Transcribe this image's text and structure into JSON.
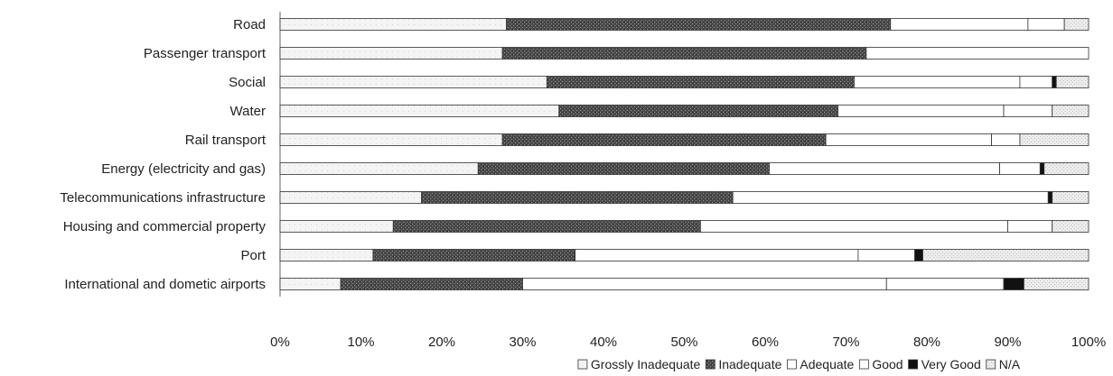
{
  "chart_data": {
    "type": "bar",
    "orientation": "horizontal",
    "stacked": true,
    "categories": [
      "Road",
      "Passenger transport",
      "Social",
      "Water",
      "Rail transport",
      "Energy (electricity and gas)",
      "Telecommunications infrastructure",
      "Housing and commercial property",
      "Port",
      "International and dometic airports"
    ],
    "series": [
      {
        "name": "Grossly Inadequate",
        "values": [
          28,
          27.5,
          33,
          34.5,
          27.5,
          24.5,
          17.5,
          14,
          11.5,
          7.5
        ]
      },
      {
        "name": "Inadequate",
        "values": [
          47.5,
          45,
          38,
          34.5,
          40,
          36,
          38.5,
          38,
          25,
          22.5
        ]
      },
      {
        "name": "Adequate",
        "values": [
          17,
          27.5,
          20.5,
          20.5,
          20.5,
          28.5,
          39,
          38,
          35,
          45
        ]
      },
      {
        "name": "Good",
        "values": [
          4.5,
          0,
          4,
          6,
          3.5,
          5,
          0,
          5.5,
          7,
          14.5
        ]
      },
      {
        "name": "Very Good",
        "values": [
          0,
          0,
          0.5,
          0,
          0,
          0.5,
          0.5,
          0,
          1,
          2.5
        ]
      },
      {
        "name": "N/A",
        "values": [
          3,
          0,
          4,
          4.5,
          8.5,
          5.5,
          4.5,
          4.5,
          20.5,
          8
        ]
      }
    ],
    "xlim": [
      0,
      100
    ],
    "x_ticks": [
      "0%",
      "10%",
      "20%",
      "30%",
      "40%",
      "50%",
      "60%",
      "70%",
      "80%",
      "90%",
      "100%"
    ],
    "legend_position": "bottom",
    "grid": false,
    "colors": {
      "Grossly Inadequate": "#ececec",
      "Inadequate": "#555555",
      "Adequate": "#ffffff",
      "Good": "#ffffff",
      "Very Good": "#111111",
      "N/A": "#e2e2e2"
    }
  }
}
